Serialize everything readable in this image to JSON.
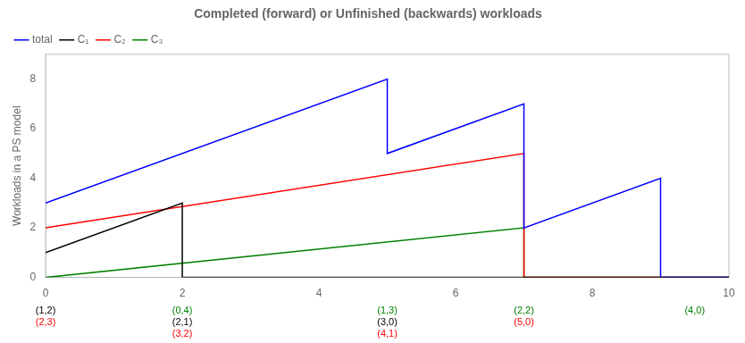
{
  "chart_data": {
    "type": "line",
    "title": "Completed (forward) or Unfinished (backwards) workloads",
    "y_label": "Workloads in a PS model",
    "xlim": [
      0,
      10
    ],
    "ylim": [
      0,
      9
    ],
    "xticks": [
      0,
      2,
      4,
      6,
      8,
      10
    ],
    "yticks": [
      0,
      2,
      4,
      6,
      8
    ],
    "grid": false,
    "legend": "upper left",
    "series": [
      {
        "name": "total",
        "color": "blue",
        "x": [
          0,
          5,
          5,
          7,
          7,
          9,
          9,
          10
        ],
        "values": [
          3,
          8,
          5,
          7,
          2,
          4,
          0,
          0
        ]
      },
      {
        "name": "C₁",
        "color": "black",
        "x": [
          0,
          2,
          2,
          10
        ],
        "values": [
          1,
          3,
          0,
          0
        ]
      },
      {
        "name": "C₂",
        "color": "red",
        "x": [
          0,
          7,
          7,
          10
        ],
        "values": [
          2,
          5,
          0,
          0
        ]
      },
      {
        "name": "C₃",
        "color": "green",
        "x": [
          0,
          7,
          7,
          10
        ],
        "values": [
          0,
          2,
          0,
          0
        ]
      }
    ],
    "annotations": [
      {
        "x": 0,
        "rows": [
          {
            "text": "(1,2)",
            "color": "black"
          },
          {
            "text": "(2,3)",
            "color": "red"
          }
        ]
      },
      {
        "x": 2,
        "rows": [
          {
            "text": "(0,4)",
            "color": "green"
          },
          {
            "text": "(2,1)",
            "color": "black"
          },
          {
            "text": "(3,2)",
            "color": "red"
          }
        ]
      },
      {
        "x": 5,
        "rows": [
          {
            "text": "(1,3)",
            "color": "green"
          },
          {
            "text": "(3,0)",
            "color": "black"
          },
          {
            "text": "(4,1)",
            "color": "red"
          }
        ]
      },
      {
        "x": 7,
        "rows": [
          {
            "text": "(2,2)",
            "color": "green"
          },
          {
            "text": "(5,0)",
            "color": "red"
          }
        ]
      },
      {
        "x": 9.5,
        "rows": [
          {
            "text": "(4,0)",
            "color": "green"
          }
        ]
      }
    ]
  }
}
